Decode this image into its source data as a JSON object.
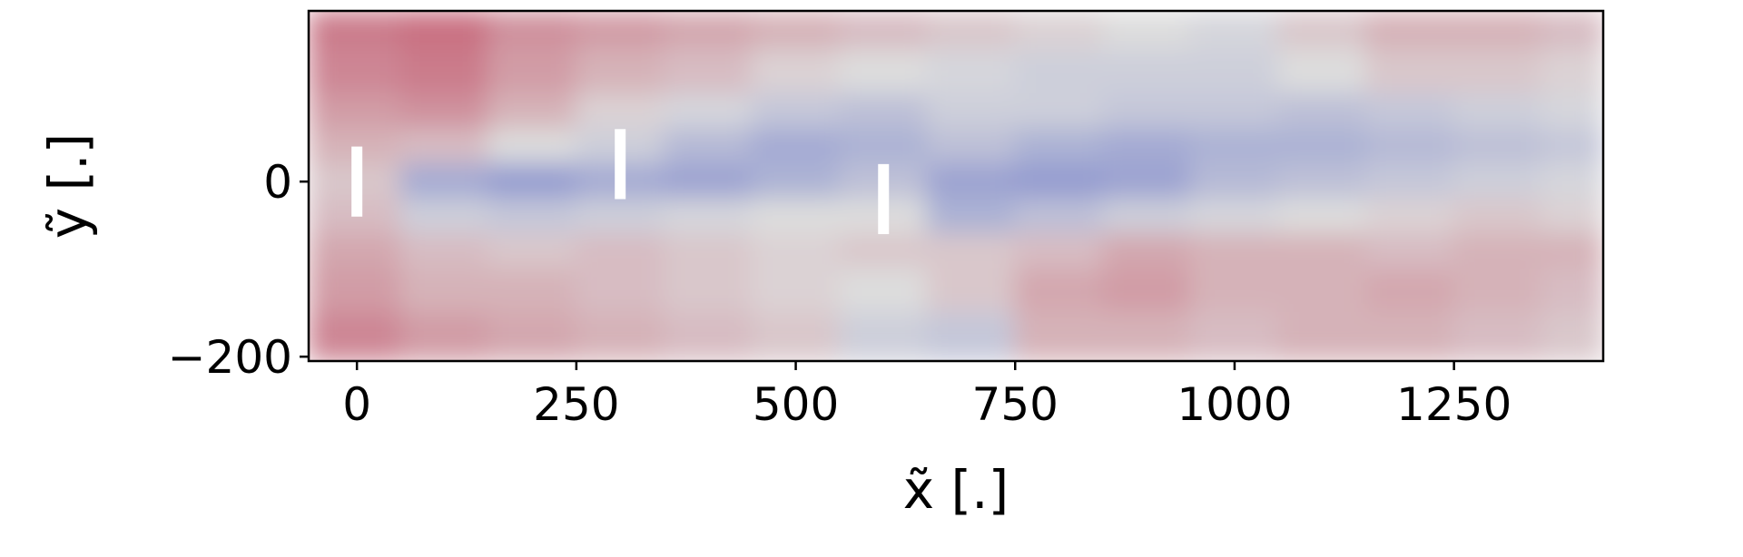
{
  "chart_data": {
    "type": "heatmap",
    "x_label": "x̃ [.]",
    "y_label": "ỹ [.]",
    "xlim": [
      -55,
      1420
    ],
    "ylim": [
      -205,
      195
    ],
    "xticks": [
      0,
      250,
      500,
      750,
      1000,
      1250
    ],
    "yticks": [
      {
        "value": -200,
        "label": "−200"
      },
      0
    ],
    "x_edges": [
      -55,
      50,
      150,
      250,
      350,
      450,
      550,
      650,
      750,
      850,
      950,
      1050,
      1150,
      1250,
      1350,
      1420
    ],
    "y_edges": [
      195,
      150,
      100,
      60,
      20,
      -20,
      -60,
      -100,
      -150,
      -205
    ],
    "vlim": [
      -1,
      1
    ],
    "colormap": [
      "#3b4cc0",
      "#dddddd",
      "#b40426"
    ],
    "values": [
      [
        0.45,
        0.5,
        0.35,
        0.3,
        0.25,
        0.2,
        0.15,
        0.1,
        0.05,
        0.0,
        -0.05,
        0.1,
        0.2,
        0.2,
        0.15
      ],
      [
        0.4,
        0.45,
        0.3,
        0.2,
        0.15,
        0.05,
        0.0,
        -0.05,
        -0.1,
        -0.1,
        -0.1,
        0.0,
        0.1,
        0.1,
        0.05
      ],
      [
        0.3,
        0.35,
        0.2,
        0.05,
        -0.05,
        -0.15,
        -0.2,
        -0.1,
        -0.1,
        -0.15,
        -0.15,
        -0.2,
        -0.15,
        -0.1,
        -0.05
      ],
      [
        0.2,
        0.15,
        0.0,
        -0.1,
        -0.25,
        -0.35,
        -0.3,
        -0.2,
        -0.3,
        -0.35,
        -0.3,
        -0.3,
        -0.25,
        -0.2,
        -0.15
      ],
      [
        0.1,
        -0.35,
        -0.45,
        -0.35,
        -0.4,
        -0.3,
        -0.2,
        -0.4,
        -0.45,
        -0.4,
        -0.25,
        -0.2,
        -0.15,
        -0.1,
        -0.05
      ],
      [
        0.15,
        -0.1,
        -0.15,
        -0.1,
        -0.05,
        0.0,
        0.0,
        -0.3,
        -0.2,
        -0.1,
        -0.05,
        0.0,
        0.05,
        0.1,
        0.05
      ],
      [
        0.25,
        0.15,
        0.1,
        0.15,
        0.1,
        0.05,
        0.1,
        0.1,
        0.15,
        0.25,
        0.2,
        0.2,
        0.15,
        0.2,
        0.2
      ],
      [
        0.3,
        0.2,
        0.2,
        0.15,
        0.1,
        0.05,
        0.0,
        0.1,
        0.25,
        0.3,
        0.2,
        0.2,
        0.25,
        0.2,
        0.15
      ],
      [
        0.4,
        0.3,
        0.25,
        0.2,
        0.15,
        0.1,
        -0.1,
        -0.15,
        0.2,
        0.2,
        0.15,
        0.2,
        0.2,
        0.15,
        0.1
      ]
    ],
    "turbines": {
      "x": [
        0,
        300,
        600
      ],
      "y": [
        0,
        20,
        -20
      ],
      "rotor_diameter": 80,
      "color": "#ffffff"
    }
  }
}
